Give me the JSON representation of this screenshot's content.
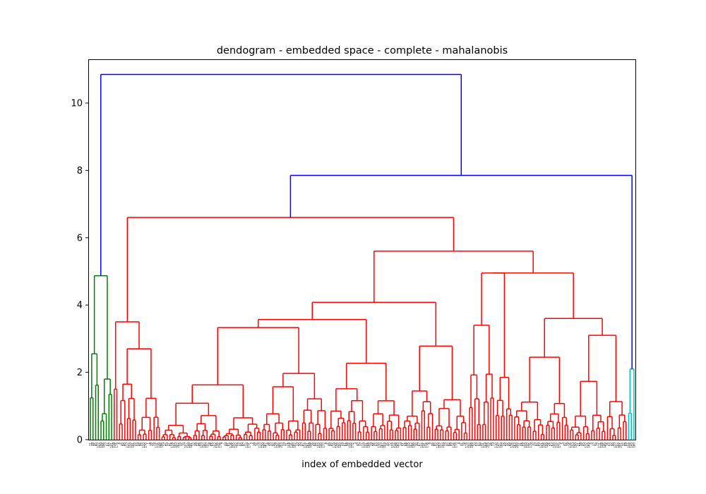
{
  "chart_data": {
    "type": "dendrogram",
    "title": "dendogram - embedded space - complete - mahalanobis",
    "xlabel": "index of embedded vector",
    "ylabel": "",
    "ylim": [
      0,
      11.3
    ],
    "yticks": [
      0,
      2,
      4,
      6,
      8,
      10
    ],
    "grid": false,
    "leaf_count": 206,
    "colors": {
      "cluster_1": "#008000",
      "cluster_2": "#ff0000",
      "cluster_3": "#00bfbf",
      "above_threshold": "#0000ff"
    },
    "top_level_merges": [
      {
        "clusters": [
          "green",
          "red+cyan"
        ],
        "height": 10.85
      },
      {
        "clusters": [
          "red",
          "cyan"
        ],
        "height": 7.85
      },
      {
        "clusters": [
          "red-left",
          "red-right"
        ],
        "height": 6.6
      },
      {
        "clusters": [
          "red-right-a",
          "red-right-b"
        ],
        "height": 5.6
      },
      {
        "clusters": [
          "green-a",
          "green-b"
        ],
        "height": 4.87
      },
      {
        "clusters": [
          "red-right-a1",
          "red-right-a2"
        ],
        "height": 4.08
      },
      {
        "clusters": [
          "red-right-b1",
          "red-right-b2"
        ],
        "height": 4.95
      },
      {
        "clusters": [
          "red-left-a",
          "red-left-b"
        ],
        "height": 3.5
      }
    ]
  }
}
